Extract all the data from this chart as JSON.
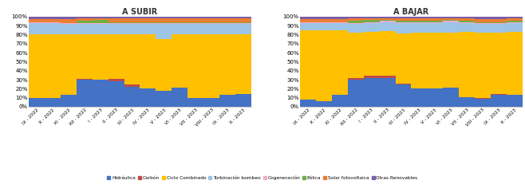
{
  "categories": [
    "IX\n2022",
    "X\n2022",
    "XI\n2022",
    "XII\n2022",
    "I\n2023",
    "II\n2023",
    "III\n2023",
    "IV\n2023",
    "V\n2023",
    "VI\n2023",
    "VII\n2023",
    "VIII\n2023",
    "IX\n2023",
    "X\n2023"
  ],
  "cat_labels": [
    "IX - 2022",
    "X - 2022",
    "XI - 2022",
    "XII - 2022",
    "I - 2023",
    "II - 2023",
    "III - 2023",
    "IV - 2023",
    "V - 2023",
    "VI - 2023",
    "VII - 2023",
    "VIII - 2023",
    "IX - 2023",
    "X - 2023"
  ],
  "subir": {
    "Hidraulica": [
      10,
      10,
      13,
      30,
      30,
      28,
      22,
      20,
      18,
      21,
      10,
      10,
      13,
      14
    ],
    "Carbon": [
      0,
      0,
      0,
      1,
      0,
      3,
      3,
      0,
      0,
      0,
      0,
      0,
      0,
      0
    ],
    "CicloCombinado": [
      70,
      70,
      67,
      49,
      50,
      49,
      55,
      60,
      57,
      59,
      70,
      70,
      67,
      66
    ],
    "TurbinacionBombeo": [
      13,
      13,
      12,
      12,
      12,
      12,
      12,
      12,
      17,
      12,
      12,
      12,
      12,
      12
    ],
    "Cogeneracion": [
      1,
      1,
      1,
      1,
      1,
      1,
      1,
      1,
      1,
      1,
      1,
      1,
      1,
      1
    ],
    "Eolica": [
      0,
      0,
      0,
      2,
      3,
      1,
      1,
      1,
      1,
      1,
      1,
      1,
      1,
      1
    ],
    "SolarFotovoltaica": [
      3,
      3,
      4,
      3,
      2,
      4,
      4,
      4,
      4,
      4,
      4,
      4,
      4,
      4
    ],
    "OtrasRenovables": [
      3,
      3,
      3,
      2,
      2,
      2,
      2,
      2,
      2,
      2,
      2,
      2,
      2,
      2
    ]
  },
  "bajar": {
    "Hidraulica": [
      8,
      6,
      13,
      30,
      32,
      32,
      25,
      20,
      20,
      21,
      11,
      9,
      13,
      13
    ],
    "Carbon": [
      0,
      0,
      0,
      2,
      2,
      2,
      1,
      0,
      0,
      0,
      0,
      1,
      1,
      0
    ],
    "CicloCombinado": [
      77,
      79,
      72,
      50,
      49,
      50,
      55,
      62,
      62,
      61,
      72,
      72,
      68,
      70
    ],
    "TurbinacionBombeo": [
      8,
      8,
      8,
      10,
      10,
      10,
      12,
      11,
      11,
      12,
      10,
      10,
      10,
      10
    ],
    "Cogeneracion": [
      1,
      1,
      1,
      1,
      1,
      1,
      1,
      1,
      1,
      1,
      1,
      1,
      1,
      1
    ],
    "Eolica": [
      0,
      0,
      0,
      2,
      2,
      1,
      1,
      1,
      1,
      1,
      1,
      1,
      1,
      1
    ],
    "SolarFotovoltaica": [
      3,
      3,
      3,
      3,
      2,
      2,
      3,
      3,
      3,
      2,
      3,
      3,
      3,
      3
    ],
    "OtrasRenovables": [
      3,
      3,
      3,
      2,
      2,
      2,
      2,
      2,
      2,
      2,
      2,
      3,
      3,
      2
    ]
  },
  "colors": {
    "Hidraulica": "#4472C4",
    "Carbon": "#BE4B48",
    "CicloCombinado": "#FFC000",
    "TurbinacionBombeo": "#9DC3E6",
    "Cogeneracion": "#F4ABCB",
    "Eolica": "#70AD47",
    "SolarFotovoltaica": "#ED7D31",
    "OtrasRenovables": "#7B5EA7"
  },
  "legend_labels": {
    "Hidraulica": "Hidráulica",
    "Carbon": "Carbón",
    "CicloCombinado": "Ciclo Combinado",
    "TurbinacionBombeo": "Turbinación bombeo",
    "Cogeneracion": "Cogeneración",
    "Eolica": "Eólica",
    "SolarFotovoltaica": "Solar fotovoltaica",
    "OtrasRenovables": "Otras Renovables"
  },
  "title_subir": "A SUBIR",
  "title_bajar": "A BAJAR",
  "ylim": [
    0,
    100
  ],
  "yticks": [
    0,
    10,
    20,
    30,
    40,
    50,
    60,
    70,
    80,
    90,
    100
  ],
  "ytick_labels": [
    "0%",
    "10%",
    "20%",
    "30%",
    "40%",
    "50%",
    "60%",
    "70%",
    "80%",
    "90%",
    "100%"
  ]
}
